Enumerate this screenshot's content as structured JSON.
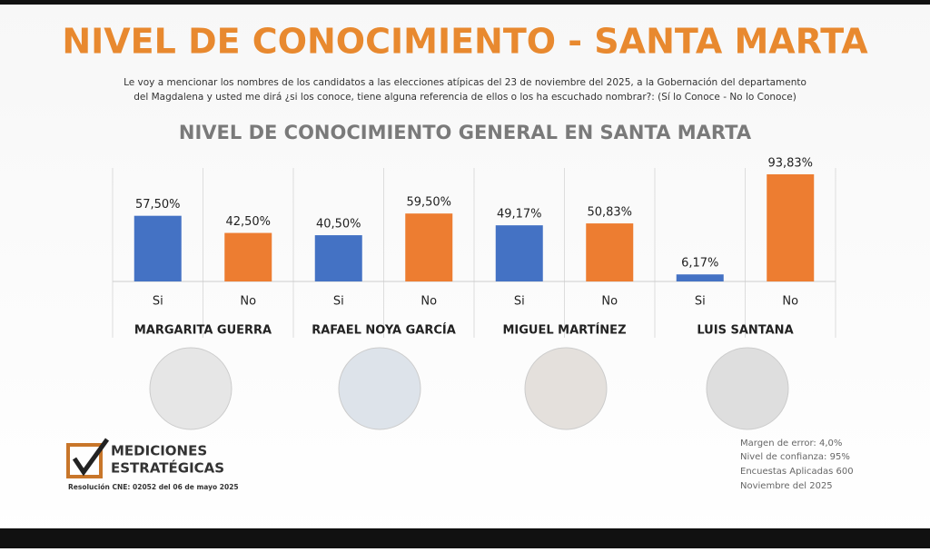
{
  "header": {
    "title": "NIVEL DE CONOCIMIENTO - SANTA MARTA",
    "question": [
      "Le voy a mencionar los nombres de los candidatos a las elecciones atípicas del 23 de noviembre del 2025, a la Gobernación del departamento",
      "del Magdalena y usted me dirá ¿si los conoce, tiene alguna referencia de ellos o los ha escuchado nombrar?: (Sí lo Conoce - No lo Conoce)"
    ]
  },
  "chart_data": {
    "type": "bar",
    "title": "NIVEL DE CONOCIMIENTO GENERAL EN SANTA MARTA",
    "categories": [
      "MARGARITA GUERRA",
      "RAFAEL NOYA GARCÍA",
      "MIGUEL MARTÍNEZ",
      "LUIS SANTANA"
    ],
    "series": [
      {
        "name": "Si",
        "color": "#4472c4",
        "values": [
          57.5,
          40.5,
          49.17,
          6.17
        ],
        "value_labels": [
          "57,50%",
          "40,50%",
          "49,17%",
          "6,17%"
        ]
      },
      {
        "name": "No",
        "color": "#ed7d31",
        "values": [
          42.5,
          59.5,
          50.83,
          93.83
        ],
        "value_labels": [
          "42,50%",
          "59,50%",
          "50,83%",
          "93,83%"
        ]
      }
    ]
  },
  "footer": {
    "logo": [
      "MEDICIONES",
      "ESTRATÉGICAS"
    ],
    "resolution": "Resolución CNE: 02052 del 06 de mayo 2025",
    "notes": [
      "Margen de error: 4,0%",
      "Nivel de confianza: 95%",
      "Encuestas Aplicadas 600",
      "Noviembre del 2025"
    ]
  }
}
